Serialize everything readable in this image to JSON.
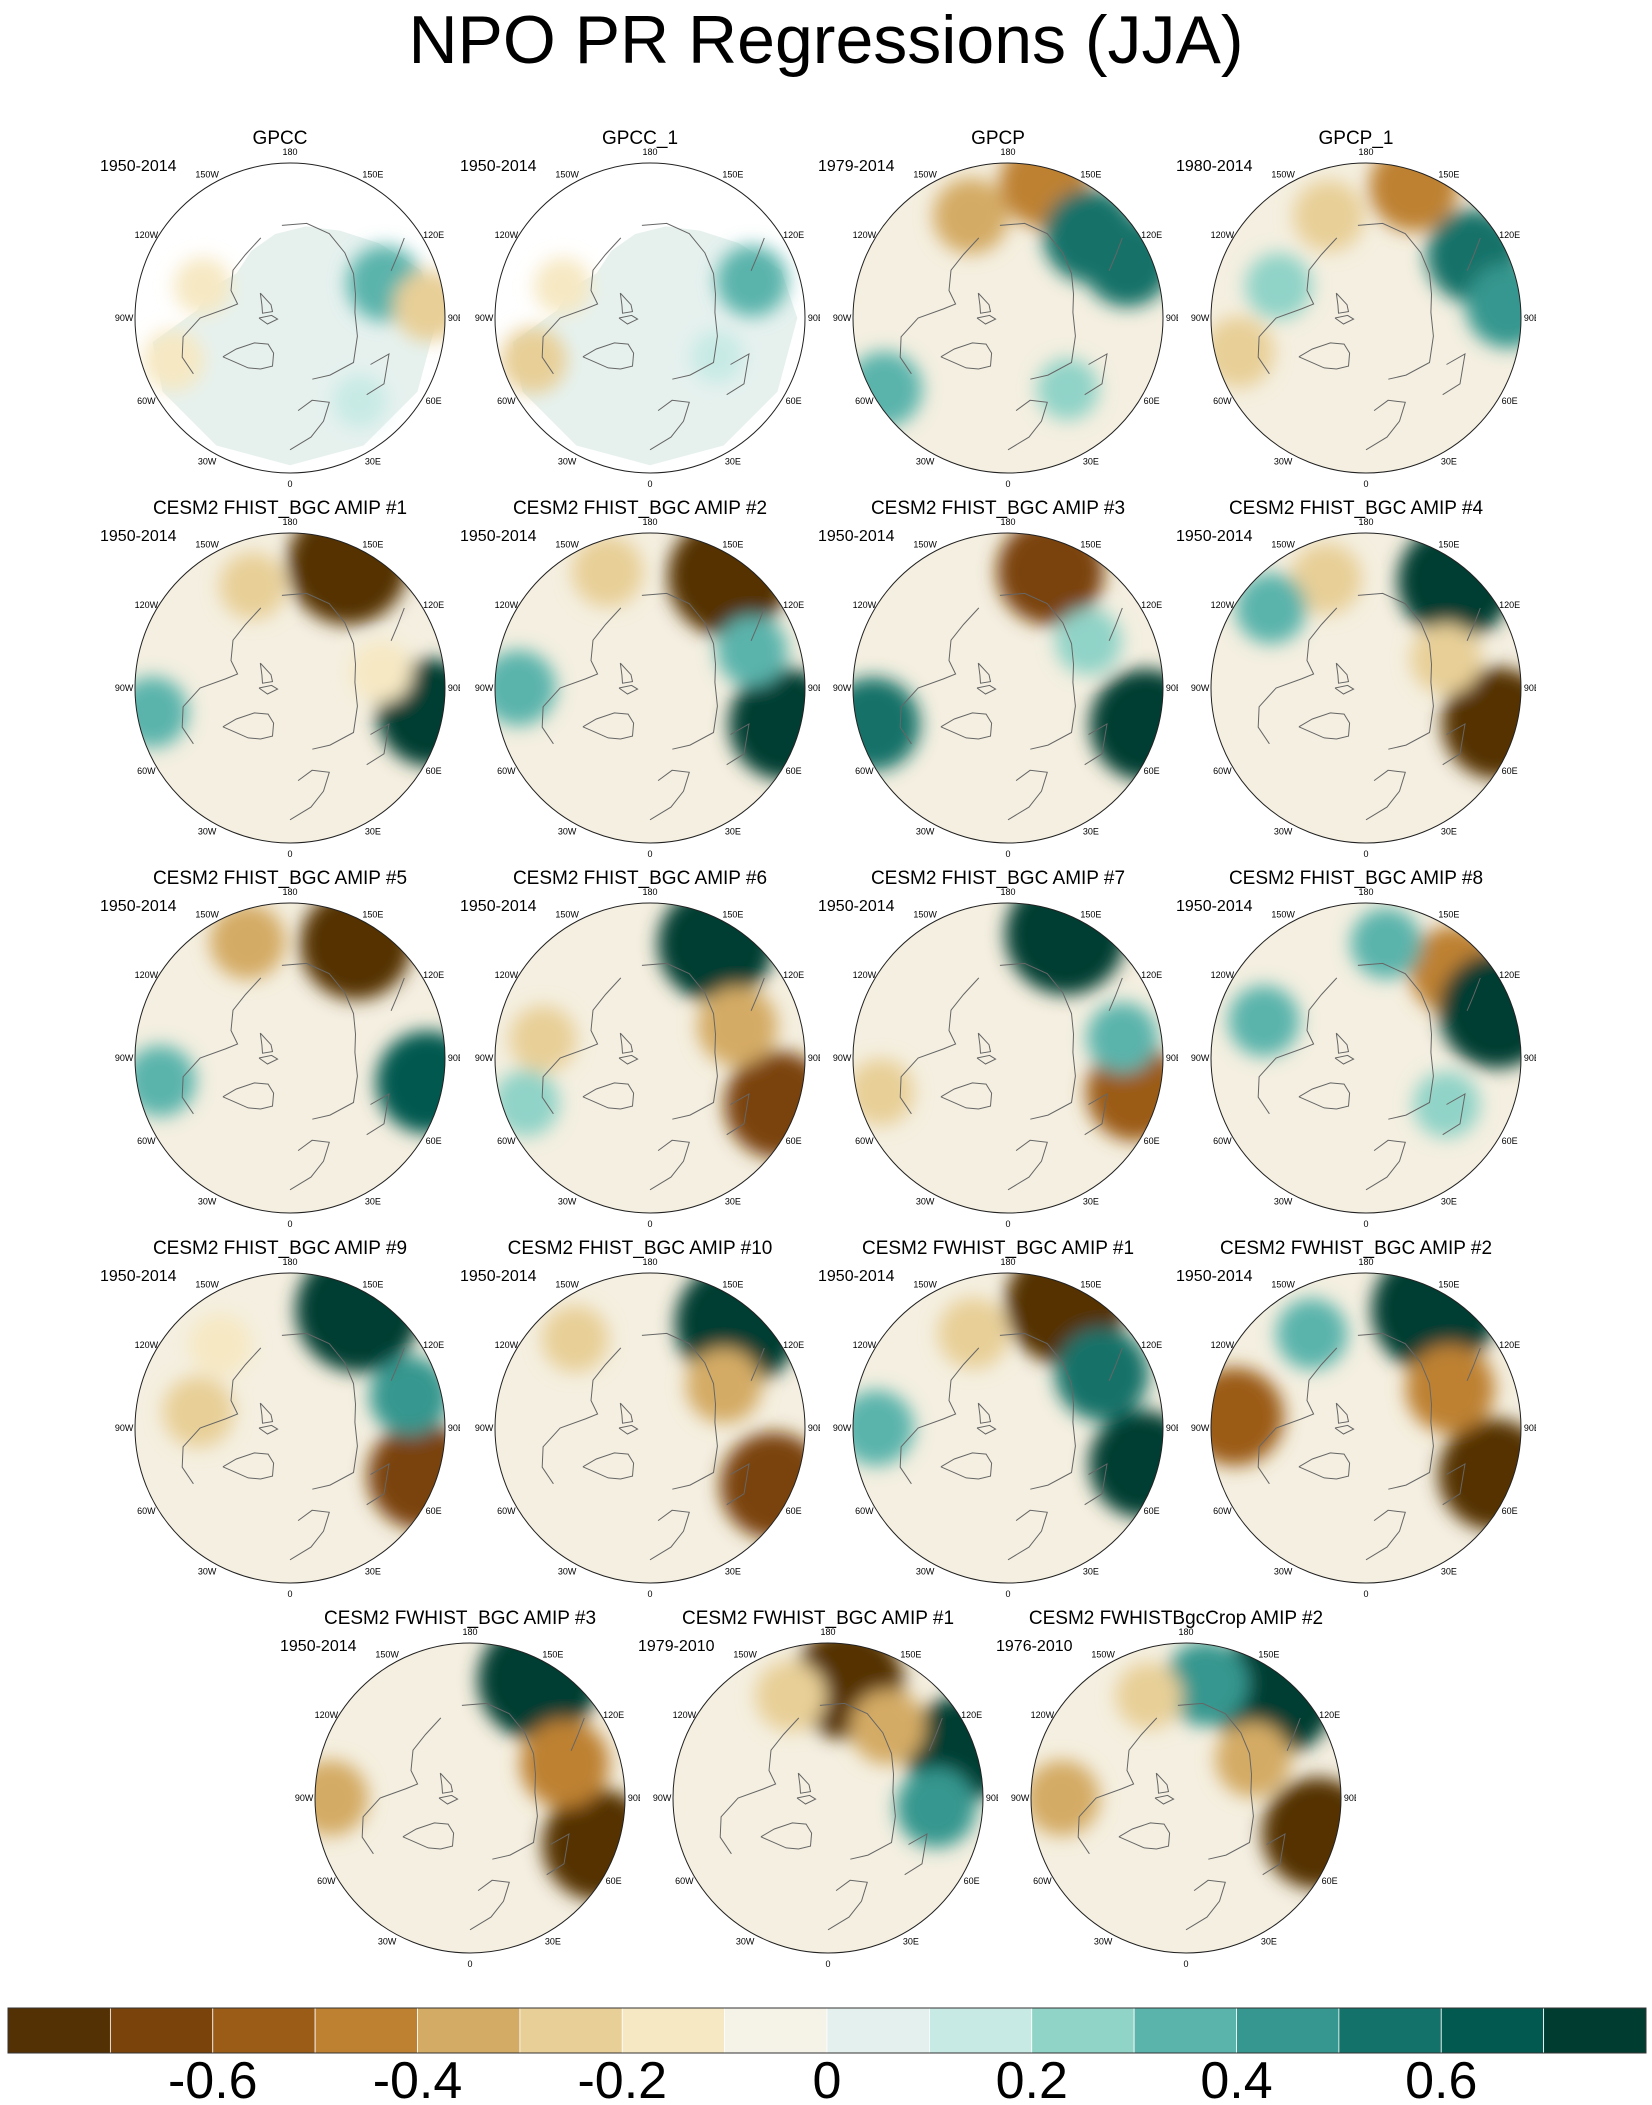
{
  "title": "NPO PR Regressions (JJA)",
  "icons": {
    "map": "polar-stereographic-map",
    "coastline": "coastline-outline"
  },
  "longitude_labels": [
    "180",
    "150E",
    "120E",
    "90E",
    "60E",
    "30E",
    "0",
    "30W",
    "60W",
    "90W",
    "120W",
    "150W"
  ],
  "panels": [
    {
      "title": "GPCC",
      "period": "1950-2014",
      "land_only": true,
      "anomalies": [
        {
          "lon": 110,
          "r": 0.65,
          "v": 0.35
        },
        {
          "lon": 95,
          "r": 0.9,
          "v": -0.3
        },
        {
          "lon": 250,
          "r": 0.6,
          "v": -0.15
        },
        {
          "lon": 40,
          "r": 0.7,
          "v": 0.1
        },
        {
          "lon": 290,
          "r": 0.8,
          "v": -0.2
        }
      ]
    },
    {
      "title": "GPCC_1",
      "period": "1950-2014",
      "land_only": true,
      "anomalies": [
        {
          "lon": 110,
          "r": 0.7,
          "v": 0.3
        },
        {
          "lon": 250,
          "r": 0.6,
          "v": -0.15
        },
        {
          "lon": 60,
          "r": 0.5,
          "v": 0.1
        },
        {
          "lon": 290,
          "r": 0.8,
          "v": -0.25
        }
      ]
    },
    {
      "title": "GPCP",
      "period": "1979-2014",
      "land_only": false,
      "anomalies": [
        {
          "lon": 165,
          "r": 0.9,
          "v": -0.5
        },
        {
          "lon": 135,
          "r": 0.75,
          "v": 0.55
        },
        {
          "lon": 115,
          "r": 0.85,
          "v": 0.5
        },
        {
          "lon": 300,
          "r": 0.92,
          "v": 0.35
        },
        {
          "lon": 200,
          "r": 0.7,
          "v": -0.35
        },
        {
          "lon": 40,
          "r": 0.6,
          "v": 0.2
        }
      ]
    },
    {
      "title": "GPCP_1",
      "period": "1980-2014",
      "land_only": false,
      "anomalies": [
        {
          "lon": 160,
          "r": 0.9,
          "v": -0.5
        },
        {
          "lon": 120,
          "r": 0.8,
          "v": 0.55
        },
        {
          "lon": 95,
          "r": 0.92,
          "v": 0.45
        },
        {
          "lon": 285,
          "r": 0.85,
          "v": -0.3
        },
        {
          "lon": 200,
          "r": 0.7,
          "v": -0.3
        },
        {
          "lon": 250,
          "r": 0.6,
          "v": 0.25
        }
      ]
    },
    {
      "title": "CESM2 FHIST_BGC AMIP #1",
      "period": "1950-2014",
      "land_only": false,
      "anomalies": [
        {
          "lon": 155,
          "r": 0.88,
          "v": -0.85
        },
        {
          "lon": 80,
          "r": 0.92,
          "v": 0.7
        },
        {
          "lon": 280,
          "r": 0.9,
          "v": 0.3
        },
        {
          "lon": 200,
          "r": 0.7,
          "v": -0.25
        },
        {
          "lon": 100,
          "r": 0.6,
          "v": -0.2
        }
      ]
    },
    {
      "title": "CESM2 FHIST_BGC AMIP #2",
      "period": "1950-2014",
      "land_only": false,
      "anomalies": [
        {
          "lon": 145,
          "r": 0.88,
          "v": -0.85
        },
        {
          "lon": 75,
          "r": 0.9,
          "v": 0.75
        },
        {
          "lon": 270,
          "r": 0.85,
          "v": 0.35
        },
        {
          "lon": 200,
          "r": 0.8,
          "v": -0.3
        },
        {
          "lon": 110,
          "r": 0.7,
          "v": 0.3
        }
      ]
    },
    {
      "title": "CESM2 FHIST_BGC AMIP #3",
      "period": "1950-2014",
      "land_only": false,
      "anomalies": [
        {
          "lon": 160,
          "r": 0.8,
          "v": -0.7
        },
        {
          "lon": 75,
          "r": 0.92,
          "v": 0.75
        },
        {
          "lon": 285,
          "r": 0.9,
          "v": 0.55
        },
        {
          "lon": 120,
          "r": 0.6,
          "v": 0.25
        }
      ]
    },
    {
      "title": "CESM2 FHIST_BGC AMIP #4",
      "period": "1950-2014",
      "land_only": false,
      "anomalies": [
        {
          "lon": 140,
          "r": 0.9,
          "v": 0.8
        },
        {
          "lon": 75,
          "r": 0.88,
          "v": -0.75
        },
        {
          "lon": 200,
          "r": 0.75,
          "v": -0.3
        },
        {
          "lon": 230,
          "r": 0.8,
          "v": 0.3
        },
        {
          "lon": 110,
          "r": 0.55,
          "v": -0.3
        }
      ]
    },
    {
      "title": "CESM2 FHIST_BGC AMIP #5",
      "period": "1950-2014",
      "land_only": false,
      "anomalies": [
        {
          "lon": 150,
          "r": 0.85,
          "v": -0.75
        },
        {
          "lon": 80,
          "r": 0.9,
          "v": 0.65
        },
        {
          "lon": 200,
          "r": 0.8,
          "v": -0.35
        },
        {
          "lon": 280,
          "r": 0.85,
          "v": 0.3
        }
      ]
    },
    {
      "title": "CESM2 FHIST_BGC AMIP #6",
      "period": "1950-2014",
      "land_only": false,
      "anomalies": [
        {
          "lon": 150,
          "r": 0.85,
          "v": 0.8
        },
        {
          "lon": 70,
          "r": 0.88,
          "v": -0.7
        },
        {
          "lon": 110,
          "r": 0.6,
          "v": -0.4
        },
        {
          "lon": 260,
          "r": 0.7,
          "v": -0.25
        },
        {
          "lon": 290,
          "r": 0.85,
          "v": 0.25
        }
      ]
    },
    {
      "title": "CESM2 FHIST_BGC AMIP #7",
      "period": "1950-2014",
      "land_only": false,
      "anomalies": [
        {
          "lon": 155,
          "r": 0.88,
          "v": 0.85
        },
        {
          "lon": 75,
          "r": 0.85,
          "v": -0.6
        },
        {
          "lon": 100,
          "r": 0.75,
          "v": 0.3
        },
        {
          "lon": 285,
          "r": 0.85,
          "v": -0.25
        }
      ]
    },
    {
      "title": "CESM2 FHIST_BGC AMIP #8",
      "period": "1950-2014",
      "land_only": false,
      "anomalies": [
        {
          "lon": 135,
          "r": 0.8,
          "v": -0.5
        },
        {
          "lon": 110,
          "r": 0.9,
          "v": 0.8
        },
        {
          "lon": 170,
          "r": 0.75,
          "v": 0.3
        },
        {
          "lon": 250,
          "r": 0.7,
          "v": 0.3
        },
        {
          "lon": 60,
          "r": 0.6,
          "v": 0.25
        }
      ]
    },
    {
      "title": "CESM2 FHIST_BGC AMIP #9",
      "period": "1950-2014",
      "land_only": false,
      "anomalies": [
        {
          "lon": 150,
          "r": 0.88,
          "v": 0.9
        },
        {
          "lon": 70,
          "r": 0.9,
          "v": -0.7
        },
        {
          "lon": 105,
          "r": 0.8,
          "v": 0.4
        },
        {
          "lon": 260,
          "r": 0.6,
          "v": -0.3
        },
        {
          "lon": 220,
          "r": 0.7,
          "v": -0.2
        }
      ]
    },
    {
      "title": "CESM2 FHIST_BGC AMIP #10",
      "period": "1950-2014",
      "land_only": false,
      "anomalies": [
        {
          "lon": 140,
          "r": 0.88,
          "v": 0.9
        },
        {
          "lon": 65,
          "r": 0.88,
          "v": -0.7
        },
        {
          "lon": 120,
          "r": 0.55,
          "v": -0.35
        },
        {
          "lon": 220,
          "r": 0.75,
          "v": -0.25
        }
      ]
    },
    {
      "title": "CESM2 FWHIST_BGC AMIP #1",
      "period": "1950-2014",
      "land_only": false,
      "anomalies": [
        {
          "lon": 155,
          "r": 0.88,
          "v": -0.85
        },
        {
          "lon": 75,
          "r": 0.9,
          "v": 0.7
        },
        {
          "lon": 120,
          "r": 0.7,
          "v": 0.55
        },
        {
          "lon": 270,
          "r": 0.85,
          "v": 0.35
        },
        {
          "lon": 200,
          "r": 0.65,
          "v": -0.3
        }
      ]
    },
    {
      "title": "CESM2 FWHIST_BGC AMIP #2",
      "period": "1950-2014",
      "land_only": false,
      "anomalies": [
        {
          "lon": 150,
          "r": 0.88,
          "v": 0.9
        },
        {
          "lon": 70,
          "r": 0.88,
          "v": -0.75
        },
        {
          "lon": 265,
          "r": 0.85,
          "v": -0.6
        },
        {
          "lon": 115,
          "r": 0.6,
          "v": -0.5
        },
        {
          "lon": 210,
          "r": 0.7,
          "v": 0.3
        }
      ]
    },
    {
      "title": "CESM2 FWHIST_BGC AMIP #3",
      "period": "1950-2014",
      "land_only": false,
      "anomalies": [
        {
          "lon": 150,
          "r": 0.88,
          "v": 0.85
        },
        {
          "lon": 70,
          "r": 0.88,
          "v": -0.75
        },
        {
          "lon": 110,
          "r": 0.65,
          "v": -0.5
        },
        {
          "lon": 270,
          "r": 0.9,
          "v": -0.35
        }
      ]
    },
    {
      "title": "CESM2 FWHIST_BGC AMIP #1",
      "period": "1979-2010",
      "land_only": false,
      "anomalies": [
        {
          "lon": 170,
          "r": 0.75,
          "v": -0.75
        },
        {
          "lon": 110,
          "r": 0.9,
          "v": 0.7
        },
        {
          "lon": 85,
          "r": 0.7,
          "v": 0.4
        },
        {
          "lon": 200,
          "r": 0.7,
          "v": -0.3
        },
        {
          "lon": 140,
          "r": 0.6,
          "v": -0.35
        }
      ]
    },
    {
      "title": "CESM2 FWHISTBgcCrop AMIP #2",
      "period": "1976-2010",
      "land_only": false,
      "anomalies": [
        {
          "lon": 140,
          "r": 0.88,
          "v": 0.9
        },
        {
          "lon": 75,
          "r": 0.88,
          "v": -0.75
        },
        {
          "lon": 170,
          "r": 0.75,
          "v": 0.45
        },
        {
          "lon": 120,
          "r": 0.5,
          "v": -0.35
        },
        {
          "lon": 270,
          "r": 0.8,
          "v": -0.35
        },
        {
          "lon": 200,
          "r": 0.7,
          "v": -0.25
        }
      ]
    }
  ],
  "colorbar": {
    "levels": [
      -0.7,
      -0.6,
      -0.5,
      -0.4,
      -0.3,
      -0.2,
      -0.1,
      0,
      0.1,
      0.2,
      0.3,
      0.4,
      0.5,
      0.6,
      0.7
    ],
    "colors": [
      "#543005",
      "#7a430b",
      "#9b5c18",
      "#be8132",
      "#d4ab65",
      "#e8cf97",
      "#f6e8c3",
      "#f5f2e8",
      "#e3f0ee",
      "#c7eae5",
      "#90d3c7",
      "#5ab4ac",
      "#35978f",
      "#137269",
      "#01594f",
      "#003c30"
    ],
    "tick_labels": [
      "-0.6",
      "-0.4",
      "-0.2",
      "0",
      "0.2",
      "0.4",
      "0.6"
    ],
    "tick_values": [
      -0.6,
      -0.4,
      -0.2,
      0,
      0.2,
      0.4,
      0.6
    ]
  }
}
